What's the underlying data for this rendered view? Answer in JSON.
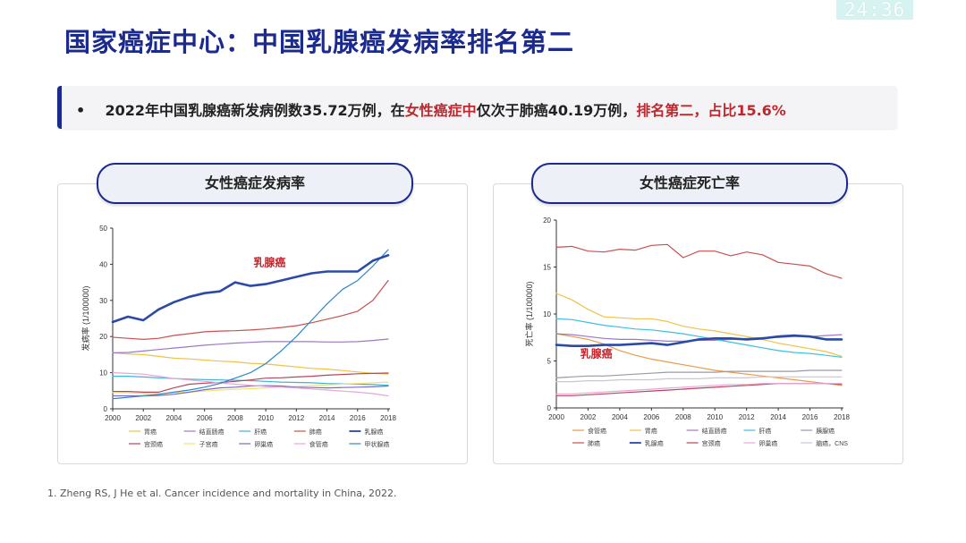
{
  "timer": "24:36",
  "title": "国家癌症中心：中国乳腺癌发病率排名第二",
  "banner": {
    "bullet": "•",
    "part1": "2022年中国乳腺癌新发病例数35.72万例，在",
    "part2": "女性癌症中",
    "part3": "仅次于肺癌40.19万例，",
    "part4": "排名第二，占比15.6%"
  },
  "footnote": "1. Zheng RS, J He  et al. Cancer incidence and mortality in China, 2022.",
  "colors": {
    "brand": "#1a2a8f",
    "highlight": "#c0272d"
  },
  "chart_data": [
    {
      "type": "line",
      "title": "女性癌症发病率",
      "ylabel": "发病率 (1/100000)",
      "xlabel": "",
      "ylim": [
        0,
        50
      ],
      "yticks": [
        0,
        10,
        20,
        30,
        40,
        50
      ],
      "x": [
        2000,
        2001,
        2002,
        2003,
        2004,
        2005,
        2006,
        2007,
        2008,
        2009,
        2010,
        2011,
        2012,
        2013,
        2014,
        2015,
        2016,
        2017,
        2018
      ],
      "xticks": [
        2000,
        2002,
        2004,
        2006,
        2008,
        2010,
        2012,
        2014,
        2016,
        2018
      ],
      "annotation": {
        "text": "乳腺癌",
        "x": 2009.2,
        "y": 39.5,
        "color": "#c0272d"
      },
      "legend_rows": [
        [
          "胃癌",
          "结直肠癌",
          "肝癌",
          "肺癌",
          "乳腺癌"
        ],
        [
          "宫颈癌",
          "子宫癌",
          "卵巢癌",
          "食管癌",
          "甲状腺癌"
        ]
      ],
      "series": [
        {
          "name": "胃癌",
          "color": "#f0c24a",
          "width": 1.2,
          "values": [
            15.5,
            15.2,
            15,
            14.5,
            14,
            13.8,
            13.5,
            13.2,
            13,
            12.6,
            12.4,
            12,
            11.6,
            11.2,
            11,
            10.6,
            10.2,
            9.8,
            9.6
          ]
        },
        {
          "name": "结直肠癌",
          "color": "#9b78c8",
          "width": 1.2,
          "values": [
            15.5,
            15.6,
            16,
            16.4,
            16.8,
            17.2,
            17.6,
            17.9,
            18.2,
            18.4,
            18.6,
            18.6,
            18.6,
            18.6,
            18.5,
            18.5,
            18.6,
            18.9,
            19.3
          ]
        },
        {
          "name": "肝癌",
          "color": "#3bb4d8",
          "width": 1.2,
          "values": [
            9,
            9,
            8.8,
            8.6,
            8.4,
            8.2,
            8.1,
            8,
            7.9,
            7.8,
            7.6,
            7.4,
            7.3,
            7.2,
            7,
            6.9,
            6.8,
            6.7,
            6.5
          ]
        },
        {
          "name": "肺癌",
          "color": "#c9504f",
          "width": 1.2,
          "values": [
            19.8,
            19.5,
            19.2,
            19.5,
            20.3,
            20.8,
            21.3,
            21.5,
            21.6,
            21.8,
            22.1,
            22.5,
            23,
            23.8,
            24.8,
            25.8,
            27,
            30,
            35.5
          ]
        },
        {
          "name": "乳腺癌",
          "color": "#2b4aa8",
          "width": 2.6,
          "values": [
            24,
            25.5,
            24.5,
            27.5,
            29.5,
            31,
            32,
            32.5,
            35,
            34,
            34.5,
            35.5,
            36.5,
            37.5,
            38,
            38,
            38,
            41,
            42.5
          ]
        },
        {
          "name": "宫颈癌",
          "color": "#b5465a",
          "width": 1.2,
          "values": [
            4.8,
            4.8,
            4.6,
            4.6,
            5.8,
            6.8,
            7.1,
            7.3,
            7.6,
            8,
            8.5,
            8.6,
            8.8,
            9,
            9.3,
            9.5,
            9.7,
            9.8,
            9.9
          ]
        },
        {
          "name": "子宫癌",
          "color": "#f5e170",
          "width": 1.2,
          "values": [
            4.5,
            4.4,
            4.2,
            4.2,
            4.4,
            4.6,
            4.9,
            5.2,
            5.4,
            5.6,
            5.8,
            6,
            6.2,
            6.4,
            6.6,
            6.8,
            7,
            7.2,
            7.4
          ]
        },
        {
          "name": "卵巢癌",
          "color": "#7b6cc0",
          "width": 1.2,
          "values": [
            3.6,
            3.6,
            3.6,
            3.7,
            4,
            4.6,
            5.3,
            5.8,
            6,
            6.3,
            6.4,
            6.3,
            6,
            5.9,
            5.8,
            5.9,
            6,
            6.1,
            6.3
          ]
        },
        {
          "name": "食管癌",
          "color": "#e7a6d8",
          "width": 1.2,
          "values": [
            10,
            9.8,
            9.6,
            9,
            8.4,
            8,
            7.6,
            7.2,
            6.8,
            6.5,
            6.2,
            6,
            5.8,
            5.5,
            5.2,
            4.9,
            4.6,
            4.2,
            3.6
          ]
        },
        {
          "name": "甲状腺癌",
          "color": "#2e87c9",
          "width": 1.2,
          "values": [
            2.8,
            3.2,
            3.6,
            4,
            4.6,
            5.2,
            6,
            7,
            8.5,
            10,
            12.5,
            16,
            20,
            24.5,
            29,
            33,
            35.5,
            39.5,
            44
          ]
        }
      ]
    },
    {
      "type": "line",
      "title": "女性癌症死亡率",
      "ylabel": "死亡率 (1/100000)",
      "xlabel": "",
      "ylim": [
        0,
        20
      ],
      "yticks": [
        0,
        5,
        10,
        15,
        20
      ],
      "x": [
        2000,
        2001,
        2002,
        2003,
        2004,
        2005,
        2006,
        2007,
        2008,
        2009,
        2010,
        2011,
        2012,
        2013,
        2014,
        2015,
        2016,
        2017,
        2018
      ],
      "xticks": [
        2000,
        2002,
        2004,
        2006,
        2008,
        2010,
        2012,
        2014,
        2016,
        2018
      ],
      "annotation": {
        "text": "乳腺癌",
        "x": 2001.5,
        "y": 5.4,
        "color": "#c0272d"
      },
      "legend_rows": [
        [
          "食管癌",
          "胃癌",
          "结直肠癌",
          "肝癌",
          "胰腺癌"
        ],
        [
          "肺癌",
          "乳腺癌",
          "宫颈癌",
          "卵巢癌",
          "脑癌，CNS"
        ]
      ],
      "series": [
        {
          "name": "食管癌",
          "color": "#e99a4c",
          "width": 1.2,
          "values": [
            7.9,
            7.6,
            7.3,
            6.8,
            6.1,
            5.6,
            5.2,
            4.9,
            4.6,
            4.3,
            4,
            3.8,
            3.6,
            3.4,
            3.2,
            3,
            2.8,
            2.6,
            2.4
          ]
        },
        {
          "name": "胃癌",
          "color": "#f0c24a",
          "width": 1.2,
          "values": [
            12.2,
            11.5,
            10.5,
            9.7,
            9.6,
            9.5,
            9.5,
            9.2,
            8.7,
            8.4,
            8.2,
            7.9,
            7.6,
            7.3,
            6.9,
            6.6,
            6.3,
            6,
            5.5
          ]
        },
        {
          "name": "结直肠癌",
          "color": "#9b78c8",
          "width": 1.2,
          "values": [
            7.9,
            7.8,
            7.6,
            7.4,
            7.3,
            7.3,
            7.2,
            7.1,
            7.1,
            7.2,
            7.2,
            7.3,
            7.4,
            7.5,
            7.5,
            7.6,
            7.6,
            7.7,
            7.8
          ]
        },
        {
          "name": "肝癌",
          "color": "#3bc0e0",
          "width": 1.2,
          "values": [
            9.5,
            9.4,
            9.1,
            8.8,
            8.6,
            8.4,
            8.3,
            8.1,
            7.9,
            7.6,
            7.3,
            7,
            6.7,
            6.4,
            6.1,
            5.9,
            5.8,
            5.6,
            5.4
          ]
        },
        {
          "name": "胰腺癌",
          "color": "#9a9aa6",
          "width": 1.2,
          "values": [
            3.2,
            3.3,
            3.4,
            3.4,
            3.5,
            3.6,
            3.7,
            3.8,
            3.8,
            3.8,
            3.8,
            3.9,
            3.9,
            3.9,
            3.9,
            3.9,
            4,
            4,
            4
          ]
        },
        {
          "name": "肺癌",
          "color": "#c9504f",
          "width": 1.2,
          "values": [
            17.1,
            17.2,
            16.7,
            16.6,
            16.9,
            16.8,
            17.3,
            17.4,
            16,
            16.7,
            16.7,
            16.2,
            16.6,
            16.3,
            15.5,
            15.3,
            15.1,
            14.3,
            13.8
          ]
        },
        {
          "name": "乳腺癌",
          "color": "#2b4aa8",
          "width": 2.6,
          "values": [
            6.7,
            6.6,
            6.6,
            6.7,
            6.7,
            6.8,
            6.9,
            6.7,
            7,
            7.3,
            7.4,
            7.4,
            7.3,
            7.4,
            7.6,
            7.7,
            7.6,
            7.3,
            7.3
          ]
        },
        {
          "name": "宫颈癌",
          "color": "#b5465a",
          "width": 1.2,
          "values": [
            1.3,
            1.3,
            1.4,
            1.5,
            1.6,
            1.7,
            1.8,
            1.9,
            2,
            2.1,
            2.2,
            2.3,
            2.4,
            2.5,
            2.6,
            2.6,
            2.6,
            2.6,
            2.5
          ]
        },
        {
          "name": "卵巢癌",
          "color": "#e7a6d8",
          "width": 1.2,
          "values": [
            1.5,
            1.5,
            1.6,
            1.7,
            1.8,
            1.9,
            2,
            2.1,
            2.2,
            2.3,
            2.4,
            2.5,
            2.5,
            2.6,
            2.6,
            2.6,
            2.6,
            2.6,
            2.6
          ]
        },
        {
          "name": "脑癌，CNS",
          "color": "#c8c8d0",
          "width": 1.2,
          "values": [
            2.8,
            2.8,
            2.9,
            2.9,
            3,
            3,
            3,
            3.1,
            3.1,
            3.1,
            3.2,
            3.2,
            3.2,
            3.3,
            3.3,
            3.3,
            3.3,
            3.3,
            3.3
          ]
        }
      ]
    }
  ]
}
